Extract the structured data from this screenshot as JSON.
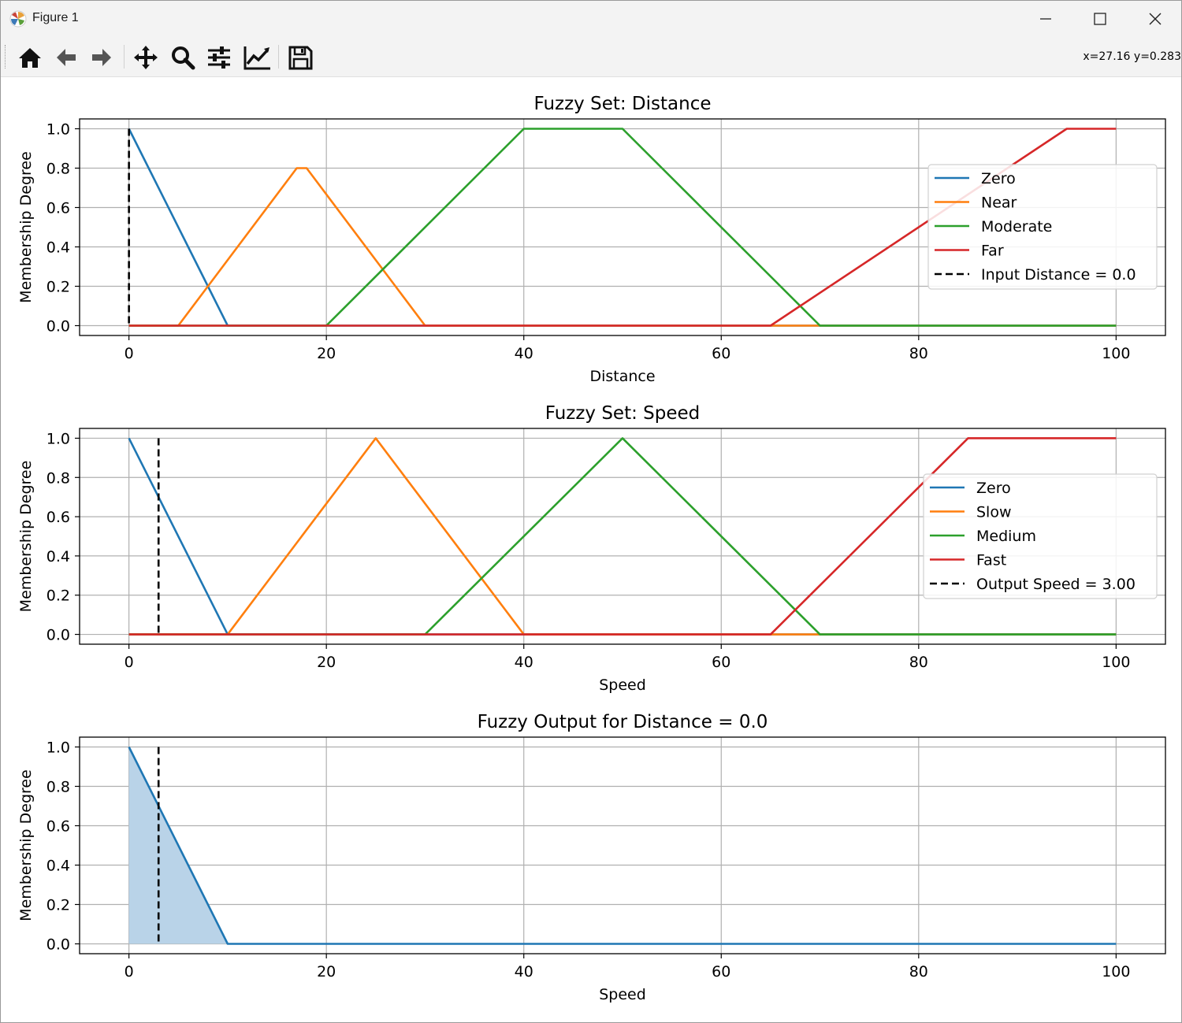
{
  "window": {
    "title": "Figure 1",
    "coords_readout": "x=27.16 y=0.283"
  },
  "toolbar": {
    "buttons": [
      {
        "name": "home-icon"
      },
      {
        "name": "back-arrow-icon"
      },
      {
        "name": "forward-arrow-icon"
      },
      {
        "name": "pan-icon"
      },
      {
        "name": "zoom-icon"
      },
      {
        "name": "configure-subplots-icon"
      },
      {
        "name": "edit-axes-icon"
      },
      {
        "name": "save-icon"
      }
    ]
  },
  "colors": {
    "blue": "#1f77b4",
    "orange": "#ff7f0e",
    "green": "#2ca02c",
    "red": "#d62728",
    "fill": "#b9d3e8"
  },
  "chart_data": [
    {
      "type": "line",
      "title": "Fuzzy Set: Distance",
      "xlabel": "Distance",
      "ylabel": "Membership Degree",
      "xlim": [
        -5,
        105
      ],
      "ylim": [
        -0.05,
        1.05
      ],
      "xticks": [
        0,
        20,
        40,
        60,
        80,
        100
      ],
      "yticks": [
        0.0,
        0.2,
        0.4,
        0.6,
        0.8,
        1.0
      ],
      "grid": true,
      "legend": "right",
      "series": [
        {
          "name": "Zero",
          "color": "#1f77b4",
          "x": [
            0,
            10,
            100
          ],
          "y": [
            1.0,
            0.0,
            0.0
          ]
        },
        {
          "name": "Near",
          "color": "#ff7f0e",
          "x": [
            0,
            5,
            17,
            18,
            30,
            100
          ],
          "y": [
            0.0,
            0.0,
            0.8,
            0.8,
            0.0,
            0.0
          ]
        },
        {
          "name": "Moderate",
          "color": "#2ca02c",
          "x": [
            0,
            20,
            40,
            50,
            70,
            100
          ],
          "y": [
            0.0,
            0.0,
            1.0,
            1.0,
            0.0,
            0.0
          ]
        },
        {
          "name": "Far",
          "color": "#d62728",
          "x": [
            0,
            65,
            95,
            100
          ],
          "y": [
            0.0,
            0.0,
            1.0,
            1.0
          ]
        }
      ],
      "vline": {
        "name": "Input Distance = 0.0",
        "x": 0.0
      },
      "fill": null
    },
    {
      "type": "line",
      "title": "Fuzzy Set: Speed",
      "xlabel": "Speed",
      "ylabel": "Membership Degree",
      "xlim": [
        -5,
        105
      ],
      "ylim": [
        -0.05,
        1.05
      ],
      "xticks": [
        0,
        20,
        40,
        60,
        80,
        100
      ],
      "yticks": [
        0.0,
        0.2,
        0.4,
        0.6,
        0.8,
        1.0
      ],
      "grid": true,
      "legend": "right",
      "series": [
        {
          "name": "Zero",
          "color": "#1f77b4",
          "x": [
            0,
            10,
            100
          ],
          "y": [
            1.0,
            0.0,
            0.0
          ]
        },
        {
          "name": "Slow",
          "color": "#ff7f0e",
          "x": [
            0,
            10,
            25,
            40,
            100
          ],
          "y": [
            0.0,
            0.0,
            1.0,
            0.0,
            0.0
          ]
        },
        {
          "name": "Medium",
          "color": "#2ca02c",
          "x": [
            0,
            30,
            50,
            70,
            100
          ],
          "y": [
            0.0,
            0.0,
            1.0,
            0.0,
            0.0
          ]
        },
        {
          "name": "Fast",
          "color": "#d62728",
          "x": [
            0,
            65,
            85,
            100
          ],
          "y": [
            0.0,
            0.0,
            1.0,
            1.0
          ]
        }
      ],
      "vline": {
        "name": "Output Speed = 3.00",
        "x": 3.0
      },
      "fill": null
    },
    {
      "type": "area",
      "title": "Fuzzy Output for Distance = 0.0",
      "xlabel": "Speed",
      "ylabel": "Membership Degree",
      "xlim": [
        -5,
        105
      ],
      "ylim": [
        -0.05,
        1.05
      ],
      "xticks": [
        0,
        20,
        40,
        60,
        80,
        100
      ],
      "yticks": [
        0.0,
        0.2,
        0.4,
        0.6,
        0.8,
        1.0
      ],
      "grid": true,
      "legend": null,
      "series": [
        {
          "color": "#1f77b4",
          "x": [
            0,
            10,
            100
          ],
          "y": [
            1.0,
            0.0,
            0.0
          ]
        }
      ],
      "vline": {
        "x": 3.0
      },
      "fill": {
        "x": [
          0,
          10,
          100
        ],
        "y": [
          1.0,
          0.0,
          0.0
        ]
      }
    }
  ]
}
